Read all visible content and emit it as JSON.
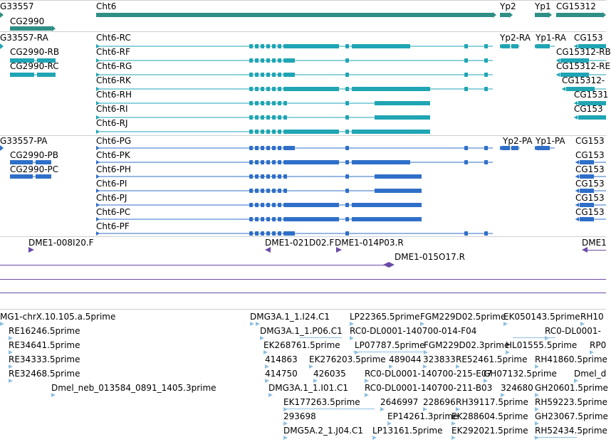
{
  "colors": {
    "gene": "#2f8f86",
    "transcript_rna": "#1fa5b4",
    "transcript_protein": "#2f6fc8",
    "clone": "#6a4aa8",
    "est": "#8fc0e0",
    "track_border": "#cfcfcf"
  },
  "gene_track": {
    "labels": [
      "G33557",
      "Cht6",
      "Yp2",
      "Yp1",
      "CG15312",
      "CG2990"
    ]
  },
  "rna_track": {
    "labels": [
      "G33557-RA",
      "CG2990-RB",
      "CG2990-RC",
      "Cht6-RC",
      "Cht6-RF",
      "Cht6-RG",
      "Cht6-RK",
      "Cht6-RH",
      "Cht6-RI",
      "Cht6-RJ",
      "Yp2-RA",
      "Yp1-RA",
      "CG153",
      "CG15312-RB",
      "CG15312-RE",
      "CG15312-",
      "CG1531",
      "CG153"
    ]
  },
  "protein_track": {
    "labels": [
      "G33557-PA",
      "CG2990-PB",
      "CG2990-PC",
      "Cht6-PG",
      "Cht6-PK",
      "Cht6-PH",
      "Cht6-PI",
      "Cht6-PJ",
      "Cht6-PC",
      "Cht6-PF",
      "Yp2-PA",
      "Yp1-PA",
      "CG153",
      "CG153",
      "CG153",
      "CG153",
      "CG153",
      "CG153"
    ]
  },
  "clone_track": {
    "labels": [
      "DME1-008I20.F",
      "DME1-021D02.F",
      "DME1-014P03.R",
      "DME1-015O17.R",
      "DME1"
    ]
  },
  "est_track": {
    "labels": [
      "MG1-chrX.10.105.a.5prime",
      "RE16246.5prime",
      "RE34641.5prime",
      "RE34333.5prime",
      "RE32468.5prime",
      "Dmel_neb_013584_0891_1405.3prime",
      "DMG3A.1_1.I24.C1",
      "DMG3A.1_1.P06.C1",
      "EK268761.5prime",
      "414863",
      "414750",
      "426035",
      "DMG3A.1_1.I01.C1",
      "EK177263.5prime",
      "293698",
      "DMG5A.2_1.J04.C1",
      "LP22365.5prime",
      "FGM229D02.5prime",
      "EK050143.5prime",
      "RH10",
      "RC0-DL0001-140700-014-F04",
      "RC0-DL0001-",
      "LP07787.5prime",
      "FGM229D02.3prime",
      "HL01555.5prime",
      "RP0",
      "EK276203.5prime",
      "489044",
      "323833",
      "RE52461.5prime",
      "RH41860.5prime",
      "RC0-DL0001-140700-215-E07",
      "GH07132.5prime",
      "Dmel_d",
      "RC0-DL0001-140700-211-B03",
      "324680",
      "GH20601.5prime",
      "2646997",
      "228696",
      "RH39117.5prime",
      "RH59223.5prime",
      "EP14261.3prime",
      "EK288604.5prime",
      "GH23067.5prime",
      "LP13161.5prime",
      "EK292021.5prime",
      "RH52434.5prime"
    ]
  }
}
